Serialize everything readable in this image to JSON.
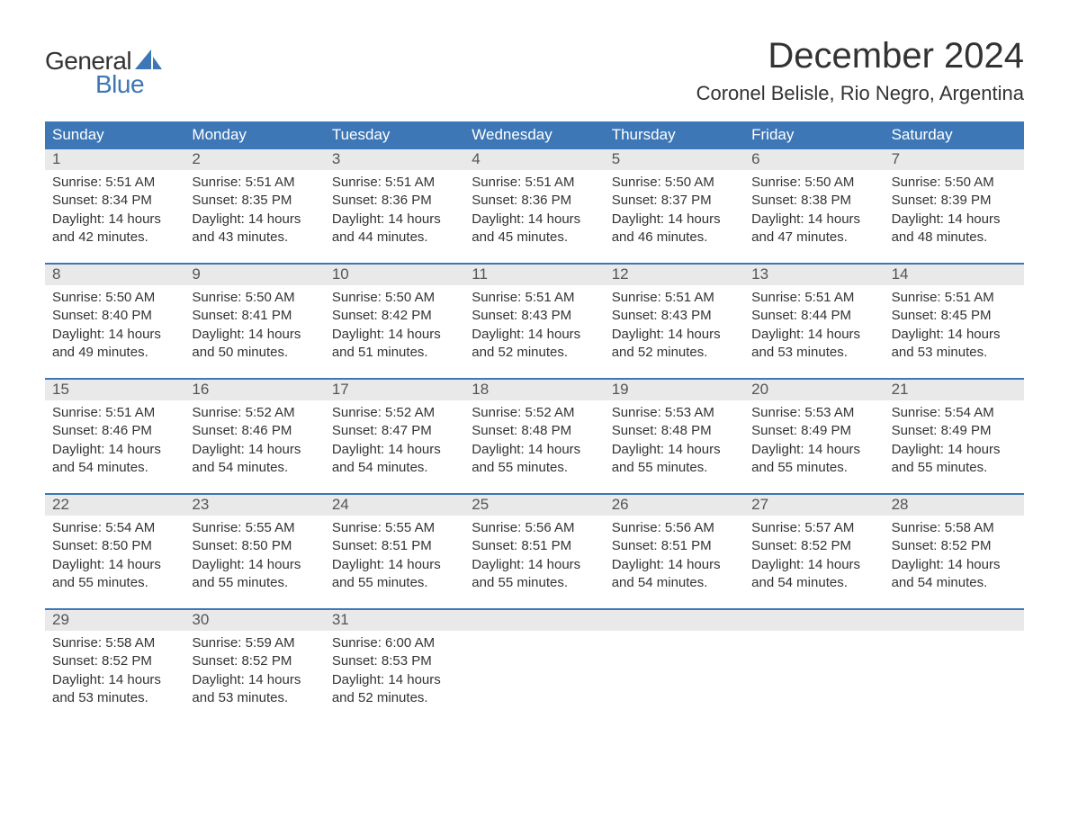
{
  "brand": {
    "word1": "General",
    "word2": "Blue",
    "text_color": "#333333",
    "accent_color": "#3d77b6",
    "sail_color": "#3d77b6"
  },
  "header": {
    "month_title": "December 2024",
    "location": "Coronel Belisle, Rio Negro, Argentina",
    "title_fontsize": 40,
    "location_fontsize": 22
  },
  "calendar": {
    "header_bg": "#3d77b6",
    "header_text_color": "#ffffff",
    "daynum_bg": "#e9e9e9",
    "row_border_color": "#3d77b6",
    "body_text_color": "#333333",
    "weekdays": [
      "Sunday",
      "Monday",
      "Tuesday",
      "Wednesday",
      "Thursday",
      "Friday",
      "Saturday"
    ],
    "weeks": [
      {
        "days": [
          {
            "num": "1",
            "sunrise": "Sunrise: 5:51 AM",
            "sunset": "Sunset: 8:34 PM",
            "daylight1": "Daylight: 14 hours",
            "daylight2": "and 42 minutes."
          },
          {
            "num": "2",
            "sunrise": "Sunrise: 5:51 AM",
            "sunset": "Sunset: 8:35 PM",
            "daylight1": "Daylight: 14 hours",
            "daylight2": "and 43 minutes."
          },
          {
            "num": "3",
            "sunrise": "Sunrise: 5:51 AM",
            "sunset": "Sunset: 8:36 PM",
            "daylight1": "Daylight: 14 hours",
            "daylight2": "and 44 minutes."
          },
          {
            "num": "4",
            "sunrise": "Sunrise: 5:51 AM",
            "sunset": "Sunset: 8:36 PM",
            "daylight1": "Daylight: 14 hours",
            "daylight2": "and 45 minutes."
          },
          {
            "num": "5",
            "sunrise": "Sunrise: 5:50 AM",
            "sunset": "Sunset: 8:37 PM",
            "daylight1": "Daylight: 14 hours",
            "daylight2": "and 46 minutes."
          },
          {
            "num": "6",
            "sunrise": "Sunrise: 5:50 AM",
            "sunset": "Sunset: 8:38 PM",
            "daylight1": "Daylight: 14 hours",
            "daylight2": "and 47 minutes."
          },
          {
            "num": "7",
            "sunrise": "Sunrise: 5:50 AM",
            "sunset": "Sunset: 8:39 PM",
            "daylight1": "Daylight: 14 hours",
            "daylight2": "and 48 minutes."
          }
        ]
      },
      {
        "days": [
          {
            "num": "8",
            "sunrise": "Sunrise: 5:50 AM",
            "sunset": "Sunset: 8:40 PM",
            "daylight1": "Daylight: 14 hours",
            "daylight2": "and 49 minutes."
          },
          {
            "num": "9",
            "sunrise": "Sunrise: 5:50 AM",
            "sunset": "Sunset: 8:41 PM",
            "daylight1": "Daylight: 14 hours",
            "daylight2": "and 50 minutes."
          },
          {
            "num": "10",
            "sunrise": "Sunrise: 5:50 AM",
            "sunset": "Sunset: 8:42 PM",
            "daylight1": "Daylight: 14 hours",
            "daylight2": "and 51 minutes."
          },
          {
            "num": "11",
            "sunrise": "Sunrise: 5:51 AM",
            "sunset": "Sunset: 8:43 PM",
            "daylight1": "Daylight: 14 hours",
            "daylight2": "and 52 minutes."
          },
          {
            "num": "12",
            "sunrise": "Sunrise: 5:51 AM",
            "sunset": "Sunset: 8:43 PM",
            "daylight1": "Daylight: 14 hours",
            "daylight2": "and 52 minutes."
          },
          {
            "num": "13",
            "sunrise": "Sunrise: 5:51 AM",
            "sunset": "Sunset: 8:44 PM",
            "daylight1": "Daylight: 14 hours",
            "daylight2": "and 53 minutes."
          },
          {
            "num": "14",
            "sunrise": "Sunrise: 5:51 AM",
            "sunset": "Sunset: 8:45 PM",
            "daylight1": "Daylight: 14 hours",
            "daylight2": "and 53 minutes."
          }
        ]
      },
      {
        "days": [
          {
            "num": "15",
            "sunrise": "Sunrise: 5:51 AM",
            "sunset": "Sunset: 8:46 PM",
            "daylight1": "Daylight: 14 hours",
            "daylight2": "and 54 minutes."
          },
          {
            "num": "16",
            "sunrise": "Sunrise: 5:52 AM",
            "sunset": "Sunset: 8:46 PM",
            "daylight1": "Daylight: 14 hours",
            "daylight2": "and 54 minutes."
          },
          {
            "num": "17",
            "sunrise": "Sunrise: 5:52 AM",
            "sunset": "Sunset: 8:47 PM",
            "daylight1": "Daylight: 14 hours",
            "daylight2": "and 54 minutes."
          },
          {
            "num": "18",
            "sunrise": "Sunrise: 5:52 AM",
            "sunset": "Sunset: 8:48 PM",
            "daylight1": "Daylight: 14 hours",
            "daylight2": "and 55 minutes."
          },
          {
            "num": "19",
            "sunrise": "Sunrise: 5:53 AM",
            "sunset": "Sunset: 8:48 PM",
            "daylight1": "Daylight: 14 hours",
            "daylight2": "and 55 minutes."
          },
          {
            "num": "20",
            "sunrise": "Sunrise: 5:53 AM",
            "sunset": "Sunset: 8:49 PM",
            "daylight1": "Daylight: 14 hours",
            "daylight2": "and 55 minutes."
          },
          {
            "num": "21",
            "sunrise": "Sunrise: 5:54 AM",
            "sunset": "Sunset: 8:49 PM",
            "daylight1": "Daylight: 14 hours",
            "daylight2": "and 55 minutes."
          }
        ]
      },
      {
        "days": [
          {
            "num": "22",
            "sunrise": "Sunrise: 5:54 AM",
            "sunset": "Sunset: 8:50 PM",
            "daylight1": "Daylight: 14 hours",
            "daylight2": "and 55 minutes."
          },
          {
            "num": "23",
            "sunrise": "Sunrise: 5:55 AM",
            "sunset": "Sunset: 8:50 PM",
            "daylight1": "Daylight: 14 hours",
            "daylight2": "and 55 minutes."
          },
          {
            "num": "24",
            "sunrise": "Sunrise: 5:55 AM",
            "sunset": "Sunset: 8:51 PM",
            "daylight1": "Daylight: 14 hours",
            "daylight2": "and 55 minutes."
          },
          {
            "num": "25",
            "sunrise": "Sunrise: 5:56 AM",
            "sunset": "Sunset: 8:51 PM",
            "daylight1": "Daylight: 14 hours",
            "daylight2": "and 55 minutes."
          },
          {
            "num": "26",
            "sunrise": "Sunrise: 5:56 AM",
            "sunset": "Sunset: 8:51 PM",
            "daylight1": "Daylight: 14 hours",
            "daylight2": "and 54 minutes."
          },
          {
            "num": "27",
            "sunrise": "Sunrise: 5:57 AM",
            "sunset": "Sunset: 8:52 PM",
            "daylight1": "Daylight: 14 hours",
            "daylight2": "and 54 minutes."
          },
          {
            "num": "28",
            "sunrise": "Sunrise: 5:58 AM",
            "sunset": "Sunset: 8:52 PM",
            "daylight1": "Daylight: 14 hours",
            "daylight2": "and 54 minutes."
          }
        ]
      },
      {
        "days": [
          {
            "num": "29",
            "sunrise": "Sunrise: 5:58 AM",
            "sunset": "Sunset: 8:52 PM",
            "daylight1": "Daylight: 14 hours",
            "daylight2": "and 53 minutes."
          },
          {
            "num": "30",
            "sunrise": "Sunrise: 5:59 AM",
            "sunset": "Sunset: 8:52 PM",
            "daylight1": "Daylight: 14 hours",
            "daylight2": "and 53 minutes."
          },
          {
            "num": "31",
            "sunrise": "Sunrise: 6:00 AM",
            "sunset": "Sunset: 8:53 PM",
            "daylight1": "Daylight: 14 hours",
            "daylight2": "and 52 minutes."
          },
          {
            "empty": true
          },
          {
            "empty": true
          },
          {
            "empty": true
          },
          {
            "empty": true
          }
        ]
      }
    ]
  }
}
